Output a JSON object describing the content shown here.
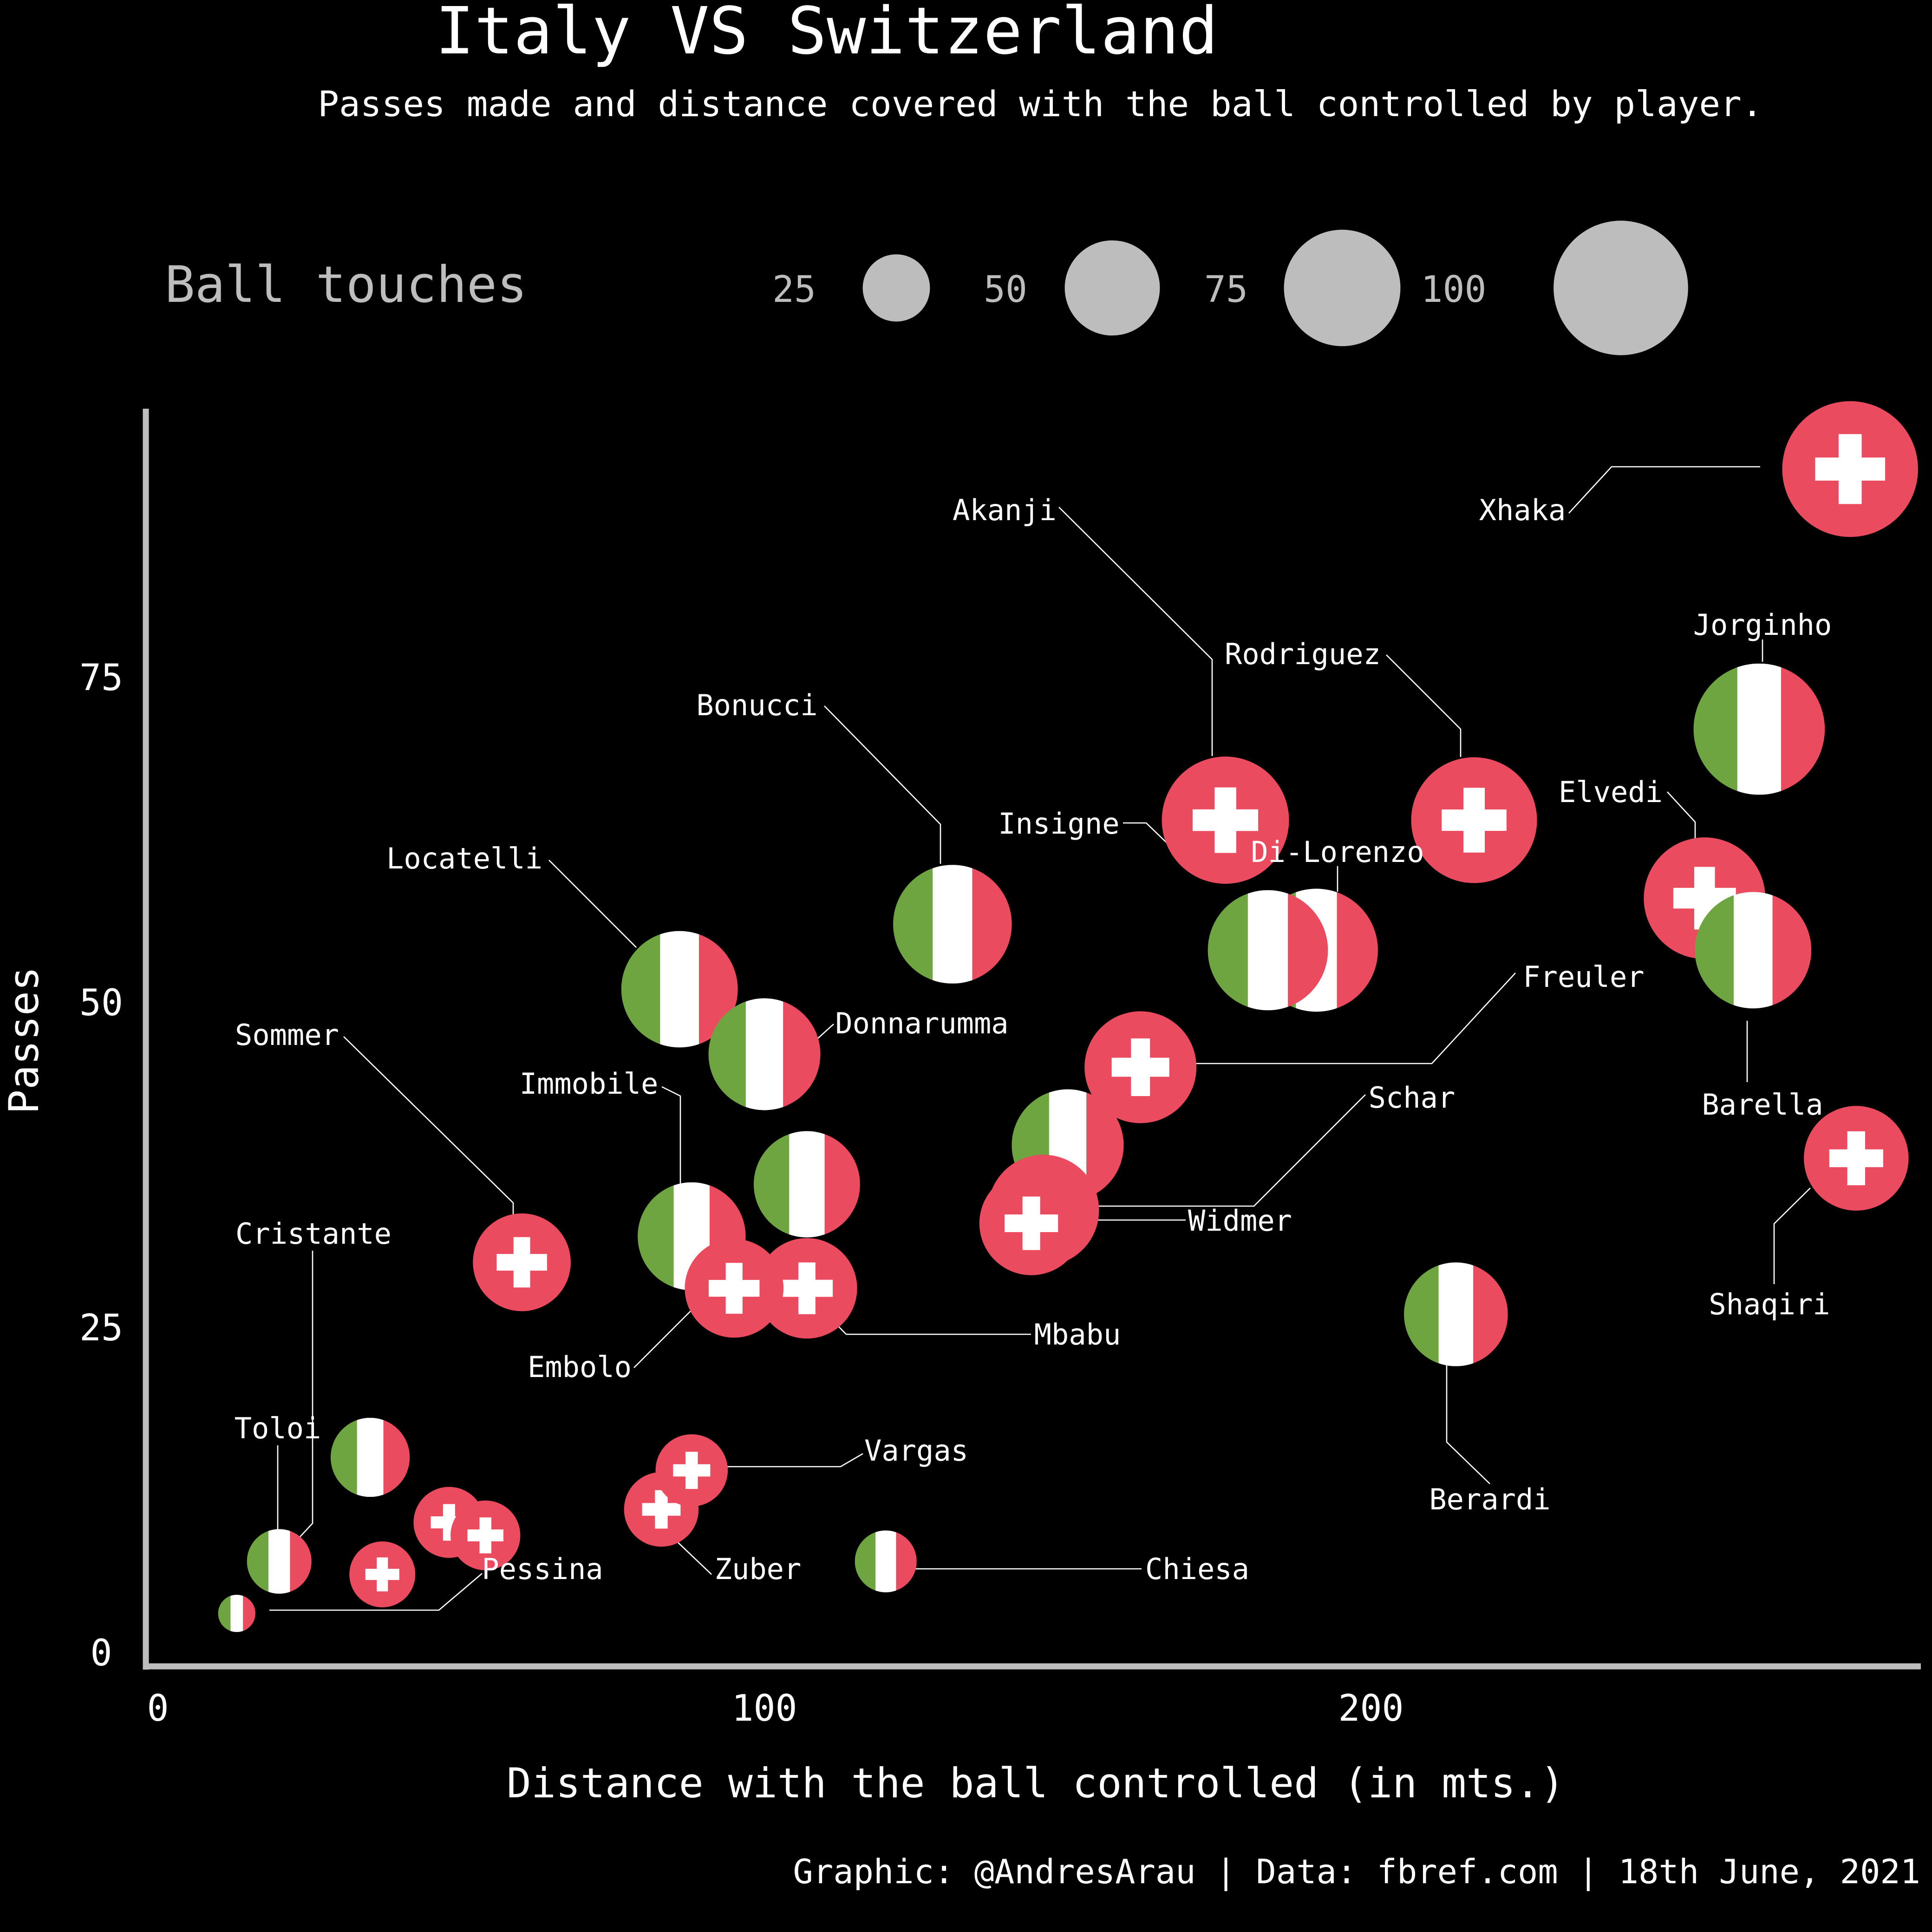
{
  "title": "Italy VS Switzerland",
  "subtitle": "Passes made and distance covered with the ball controlled by player.",
  "footer": "Graphic: @AndresArau | Data: fbref.com | 18th June, 2021",
  "colors": {
    "background": "#000000",
    "italy_green": "#6ea540",
    "italy_white": "#ffffff",
    "italy_red": "#eb4b5e",
    "swiss_red": "#eb4b5e",
    "swiss_cross": "#ffffff",
    "legend_grey": "#bdbdbd",
    "axis_grey": "#bdbdbd"
  },
  "legend": {
    "title": "Ball touches",
    "items": [
      {
        "label": "25",
        "touches": 25
      },
      {
        "label": "50",
        "touches": 50
      },
      {
        "label": "75",
        "touches": 75
      },
      {
        "label": "100",
        "touches": 100
      }
    ]
  },
  "chart_data": {
    "type": "scatter",
    "title": "Italy VS Switzerland",
    "subtitle": "Passes made and distance covered with the ball controlled by player.",
    "xlabel": "Distance with the ball controlled (in mts.)",
    "ylabel": "Passes",
    "xlim": [
      0,
      290
    ],
    "ylim": [
      0,
      95
    ],
    "xticks": [
      0,
      100,
      200
    ],
    "yticks": [
      0,
      25,
      50,
      75
    ],
    "grid": false,
    "series": [
      {
        "name": "Italy",
        "marker": "italian-flag",
        "points": [
          {
            "player": "Jorginho",
            "x": 264,
            "y": 71,
            "touches": 99
          },
          {
            "player": "Barella",
            "x": 263,
            "y": 54,
            "touches": 78
          },
          {
            "player": "Di Lorenzo",
            "x": 191,
            "y": 54,
            "touches": 87
          },
          {
            "player": "Insigne",
            "x": 183,
            "y": 54,
            "touches": 83
          },
          {
            "player": "Bonucci",
            "x": 131,
            "y": 56,
            "touches": 81
          },
          {
            "player": "Locatelli",
            "x": 86,
            "y": 51,
            "touches": 78
          },
          {
            "player": "Donnarumma",
            "x": 100,
            "y": 46,
            "touches": 72
          },
          {
            "player": "Immobile",
            "x": 88,
            "y": 32,
            "touches": 67
          },
          {
            "player": null,
            "x": 107,
            "y": 36,
            "touches": 65
          },
          {
            "player": null,
            "x": 150,
            "y": 39,
            "touches": 72
          },
          {
            "player": "Berardi",
            "x": 214,
            "y": 26,
            "touches": 62
          },
          {
            "player": null,
            "x": 35,
            "y": 15,
            "touches": 36
          },
          {
            "player": "Toloi",
            "x": 20,
            "y": 7,
            "touches": 24
          },
          {
            "player": "Chiesa",
            "x": 120,
            "y": 7,
            "touches": 22
          },
          {
            "player": "Cristante",
            "x": 13,
            "y": 3,
            "touches": 8
          }
        ]
      },
      {
        "name": "Switzerland",
        "marker": "swiss-flag",
        "points": [
          {
            "player": "Xhaka",
            "x": 279,
            "y": 91,
            "touches": 106
          },
          {
            "player": "Akanji",
            "x": 176,
            "y": 64,
            "touches": 93
          },
          {
            "player": "Rodriguez",
            "x": 217,
            "y": 64,
            "touches": 91
          },
          {
            "player": "Elvedi",
            "x": 255,
            "y": 58,
            "touches": 85
          },
          {
            "player": "Freuler",
            "x": 162,
            "y": 45,
            "touches": 72
          },
          {
            "player": "Widmer",
            "x": 146,
            "y": 34,
            "touches": 71
          },
          {
            "player": "Schar",
            "x": 144,
            "y": 33,
            "touches": 62
          },
          {
            "player": "Shaqiri",
            "x": 280,
            "y": 38,
            "touches": 63
          },
          {
            "player": "Sommer",
            "x": 60,
            "y": 30,
            "touches": 55
          },
          {
            "player": "Embolo",
            "x": 95,
            "y": 28,
            "touches": 56
          },
          {
            "player": "Mbabu",
            "x": 107,
            "y": 28,
            "touches": 58
          },
          {
            "player": "Vargas",
            "x": 88,
            "y": 14,
            "touches": 30
          },
          {
            "player": "Zuber",
            "x": 83,
            "y": 11,
            "touches": 32
          },
          {
            "player": null,
            "x": 48,
            "y": 10,
            "touches": 29
          },
          {
            "player": null,
            "x": 54,
            "y": 9,
            "touches": 28
          },
          {
            "player": "Pessina",
            "x": 37,
            "y": 6,
            "touches": 25
          }
        ]
      }
    ]
  }
}
